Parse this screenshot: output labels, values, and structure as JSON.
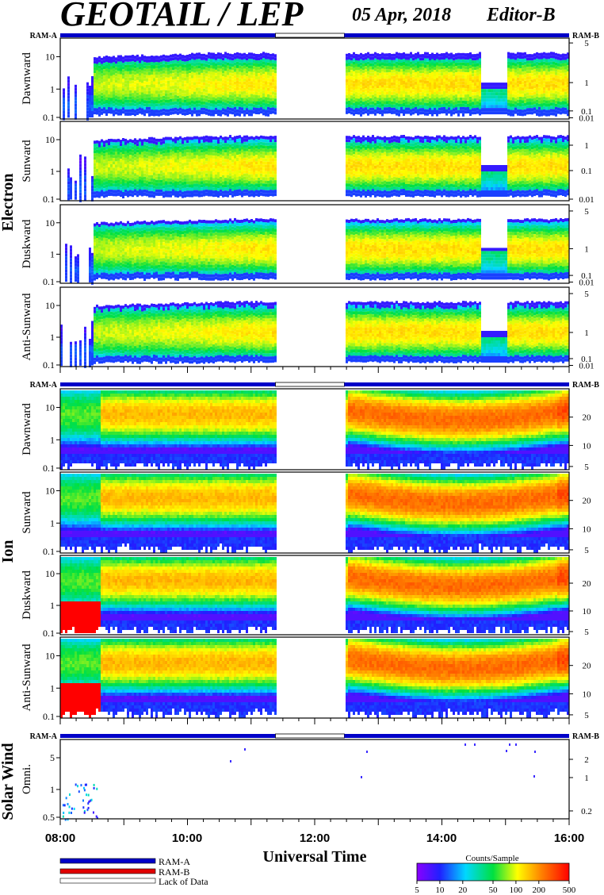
{
  "header": {
    "title": "GEOTAIL / LEP",
    "date": "05 Apr, 2018",
    "editor": "Editor-B"
  },
  "ram_labels": {
    "left": "RAM-A",
    "right": "RAM-B"
  },
  "sections": [
    {
      "name": "Electron",
      "panels": [
        "Dawnward",
        "Sunward",
        "Duskward",
        "Anti-Sunward"
      ]
    },
    {
      "name": "Ion",
      "panels": [
        "Dawnward",
        "Sunward",
        "Duskward",
        "Anti-Sunward"
      ]
    },
    {
      "name": "Solar Wind",
      "panels": [
        "Omni."
      ]
    }
  ],
  "chart_data": {
    "type": "heatmap",
    "xlabel": "Universal Time",
    "x_ticks": [
      "08:00",
      "10:00",
      "12:00",
      "14:00",
      "16:00"
    ],
    "x_range": [
      "08:00",
      "16:00"
    ],
    "data_gap": {
      "start": "11:23",
      "end": "12:28"
    },
    "panels": [
      {
        "group": "Electron",
        "name": "Dawnward",
        "left_ticks": [
          "10",
          "1",
          "0.1"
        ],
        "right_ticks": [
          "5",
          "1",
          "0.1",
          "0.01"
        ]
      },
      {
        "group": "Electron",
        "name": "Sunward",
        "left_ticks": [
          "10",
          "1",
          "0.1"
        ],
        "right_ticks": [
          "1",
          "0.1",
          "0.01"
        ]
      },
      {
        "group": "Electron",
        "name": "Duskward",
        "left_ticks": [
          "10",
          "1",
          "0.1"
        ],
        "right_ticks": [
          "5",
          "1",
          "0.1",
          "0.01"
        ]
      },
      {
        "group": "Electron",
        "name": "Anti-Sunward",
        "left_ticks": [
          "10",
          "1",
          "0.1"
        ],
        "right_ticks": [
          "5",
          "1",
          "0.1",
          "0.01"
        ]
      },
      {
        "group": "Ion",
        "name": "Dawnward",
        "left_ticks": [
          "10",
          "1",
          "0.1"
        ],
        "right_ticks": [
          "20",
          "10",
          "5"
        ]
      },
      {
        "group": "Ion",
        "name": "Sunward",
        "left_ticks": [
          "10",
          "1",
          "0.1"
        ],
        "right_ticks": [
          "20",
          "10",
          "5"
        ]
      },
      {
        "group": "Ion",
        "name": "Duskward",
        "left_ticks": [
          "10",
          "1",
          "0.1"
        ],
        "right_ticks": [
          "20",
          "10",
          "5"
        ]
      },
      {
        "group": "Ion",
        "name": "Anti-Sunward",
        "left_ticks": [
          "10",
          "1",
          "0.1"
        ],
        "right_ticks": [
          "20",
          "10",
          "5"
        ]
      },
      {
        "group": "Solar Wind",
        "name": "Omni.",
        "left_ticks": [
          "5",
          "1",
          "0.5"
        ],
        "right_ticks": [
          "2",
          "1",
          "0.2"
        ]
      }
    ],
    "legend": [
      {
        "label": "RAM-A",
        "color": "#0000c8"
      },
      {
        "label": "RAM-B",
        "color": "#e00000"
      },
      {
        "label": "Lack of Data",
        "color": "#ffffff"
      }
    ],
    "colorbar": {
      "title": "Counts/Sample",
      "ticks": [
        "5",
        "10",
        "20",
        "50",
        "100",
        "200",
        "500"
      ],
      "range": [
        5,
        500
      ],
      "scale": "log"
    }
  }
}
